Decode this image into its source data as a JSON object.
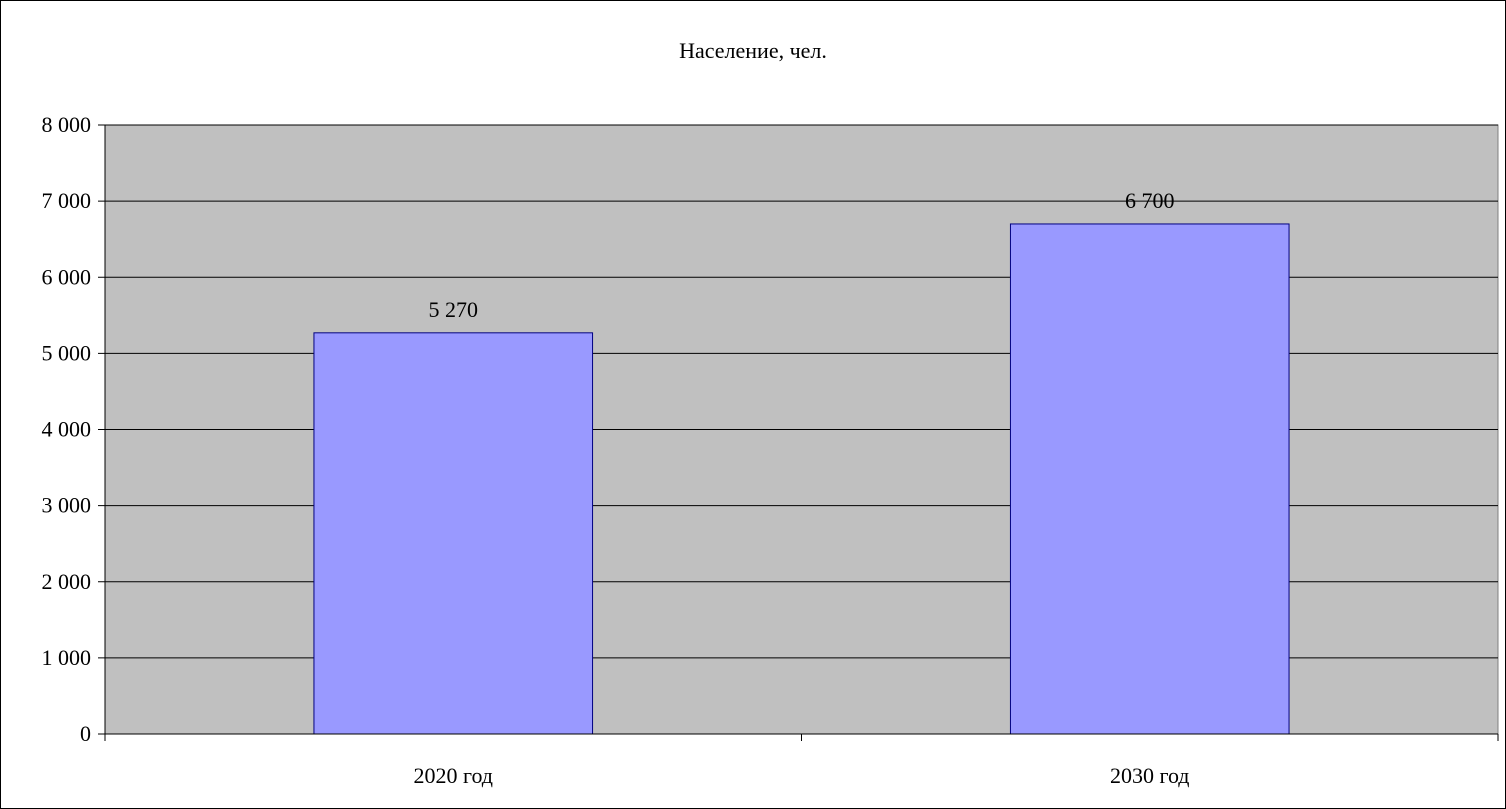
{
  "chart_data": {
    "type": "bar",
    "title": "Население, чел.",
    "xlabel": "",
    "ylabel": "",
    "categories": [
      "2020 год",
      "2030 год"
    ],
    "values": [
      5270,
      6700
    ],
    "value_labels": [
      "5 270",
      "6 700"
    ],
    "ylim": [
      0,
      8000
    ],
    "y_ticks": [
      0,
      1000,
      2000,
      3000,
      4000,
      5000,
      6000,
      7000,
      8000
    ],
    "y_tick_labels": [
      "0",
      "1 000",
      "2 000",
      "3 000",
      "4 000",
      "5 000",
      "6 000",
      "7 000",
      "8 000"
    ],
    "grid": true,
    "legend": "none",
    "colors": {
      "bar_fill": "#9999ff",
      "bar_stroke": "#000080",
      "plot_background": "#c0c0c0",
      "gridline": "#000000"
    }
  }
}
